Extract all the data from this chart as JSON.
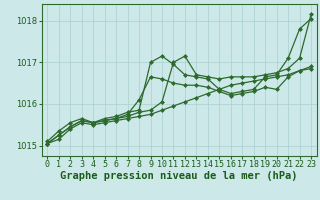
{
  "title": "Graphe pression niveau de la mer (hPa)",
  "xlabel_hours": [
    0,
    1,
    2,
    3,
    4,
    5,
    6,
    7,
    8,
    9,
    10,
    11,
    12,
    13,
    14,
    15,
    16,
    17,
    18,
    19,
    20,
    21,
    22,
    23
  ],
  "series": [
    [
      1015.05,
      1015.15,
      1015.4,
      1015.55,
      1015.5,
      1015.55,
      1015.6,
      1015.65,
      1015.7,
      1015.75,
      1015.85,
      1015.95,
      1016.05,
      1016.15,
      1016.25,
      1016.35,
      1016.45,
      1016.5,
      1016.55,
      1016.6,
      1016.65,
      1016.7,
      1016.8,
      1016.9
    ],
    [
      1015.05,
      1015.25,
      1015.45,
      1015.6,
      1015.55,
      1015.6,
      1015.65,
      1015.75,
      1016.1,
      1016.65,
      1016.6,
      1016.5,
      1016.45,
      1016.45,
      1016.4,
      1016.3,
      1016.2,
      1016.25,
      1016.3,
      1016.4,
      1016.35,
      1016.65,
      1016.8,
      1016.85
    ],
    [
      1015.05,
      1015.25,
      1015.45,
      1015.6,
      1015.55,
      1015.65,
      1015.7,
      1015.8,
      1015.85,
      1017.0,
      1017.15,
      1016.95,
      1016.7,
      1016.65,
      1016.6,
      1016.35,
      1016.25,
      1016.3,
      1016.35,
      1016.65,
      1016.7,
      1017.1,
      1017.8,
      1018.05
    ],
    [
      1015.1,
      1015.35,
      1015.55,
      1015.65,
      1015.55,
      1015.6,
      1015.65,
      1015.7,
      1015.8,
      1015.85,
      1016.05,
      1017.0,
      1017.15,
      1016.7,
      1016.65,
      1016.6,
      1016.65,
      1016.65,
      1016.65,
      1016.7,
      1016.75,
      1016.85,
      1017.1,
      1018.15
    ]
  ],
  "line_color": "#2d6a2d",
  "marker": "D",
  "markersize": 2.0,
  "linewidth": 0.9,
  "bg_color": "#cce8e8",
  "grid_color": "#aacfcf",
  "ylim": [
    1014.75,
    1018.4
  ],
  "yticks": [
    1015,
    1016,
    1017,
    1018
  ],
  "title_color": "#1a5c1a",
  "title_fontsize": 7.5,
  "tick_fontsize": 6.0
}
